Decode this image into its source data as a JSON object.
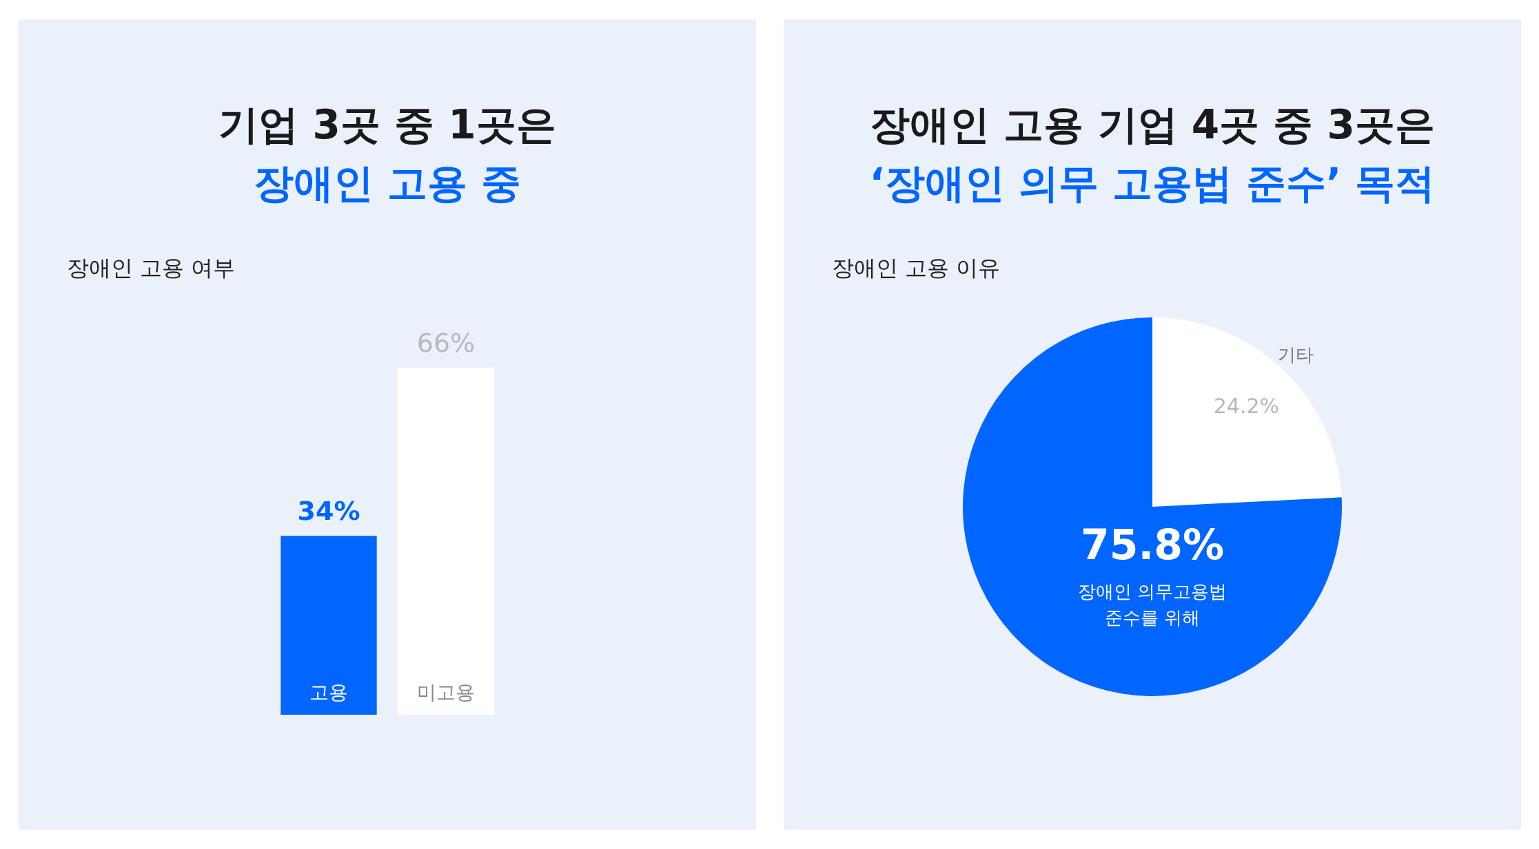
{
  "chart_data": [
    {
      "type": "bar",
      "title": "기업 3곳 중 1곳은",
      "subtitle": "장애인 고용 중",
      "annotations": [
        "장애인 고용 여부"
      ],
      "categories": [
        "고용",
        "미고용"
      ],
      "values": [
        34,
        66
      ],
      "colors": [
        "#0066ff",
        "#ffffff"
      ],
      "value_labels": [
        "34%",
        "66%"
      ]
    },
    {
      "type": "pie",
      "title": "장애인 고용 기업 4곳 중 3곳은",
      "subtitle": "‘장애인 의무 고용법 준수’ 목적",
      "annotations": [
        "장애인 고용 이유"
      ],
      "categories": [
        "기타",
        "장애인 의무고용법\n준수를 위해"
      ],
      "values": [
        24.2,
        75.8
      ],
      "colors": [
        "#ffffff",
        "#0066ff"
      ],
      "value_labels": [
        "24.2%",
        "75.8%"
      ]
    }
  ]
}
